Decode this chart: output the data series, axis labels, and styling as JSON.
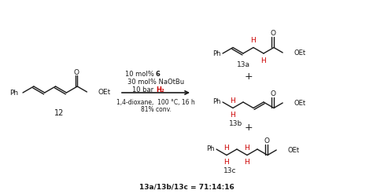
{
  "bg_color": "#ffffff",
  "black_color": "#1a1a1a",
  "H_color": "#cc0000",
  "label_12": "12",
  "label_13a": "13a",
  "label_13b": "13b",
  "label_13c": "13c",
  "ratio_text": "13a/13b/13c = 71:14:16",
  "fig_width": 4.74,
  "fig_height": 2.47,
  "dpi": 100
}
